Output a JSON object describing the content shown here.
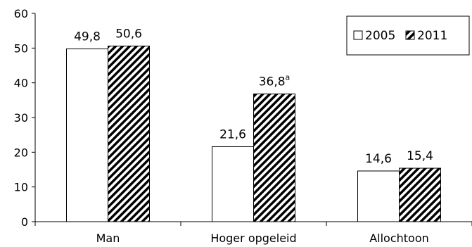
{
  "chart_data": {
    "type": "bar",
    "categories": [
      "Man",
      "Hoger opgeleid",
      "Allochtoon"
    ],
    "series": [
      {
        "name": "2005",
        "values": [
          49.8,
          21.6,
          14.6
        ],
        "labels": [
          "49,8",
          "21,6",
          "14,6"
        ],
        "fill": "#ffffff"
      },
      {
        "name": "2011",
        "values": [
          50.6,
          36.8,
          15.4
        ],
        "labels": [
          "50,6",
          "36,8",
          "15,4"
        ],
        "fill": "hatched"
      }
    ],
    "annotations": [
      {
        "category": 1,
        "series": 1,
        "superscript": "a"
      }
    ],
    "ylim": [
      0,
      60
    ],
    "yticks": [
      "0",
      "10",
      "20",
      "30",
      "40",
      "50",
      "60"
    ],
    "legend_position": "top-right",
    "grid": false,
    "title": "",
    "xlabel": "",
    "ylabel": ""
  }
}
